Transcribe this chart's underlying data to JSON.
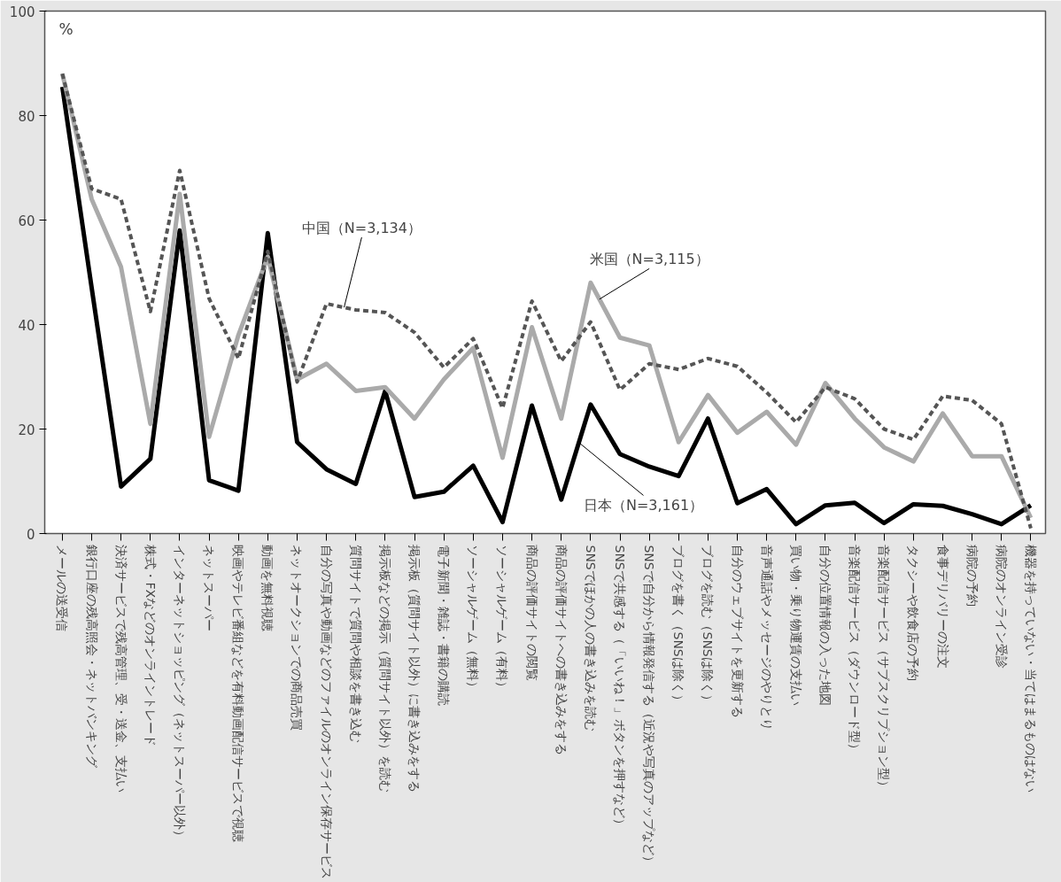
{
  "chart_data": {
    "type": "line",
    "categories": [
      "メールの送受信",
      "銀行口座の残高照会・ネットバンキング",
      "決済サービスで残高管理、受・送金、支払い",
      "株式・FXなどのオンライントレード",
      "インターネットショッピング（ネットスーパー以外）",
      "ネットスーパー",
      "映画やテレビ番組などを有料動画配信サービスで視聴",
      "動画を無料視聴",
      "ネットオークションでの商品売買",
      "自分の写真や動画などのファイルのオンライン保存サービス",
      "質問サイトで質問や相談を書き込む",
      "掲示板などの掲示（質問サイト以外）を読む",
      "掲示板（質問サイト以外）に書き込みをする",
      "電子新聞・雑誌・書籍の購読",
      "ソーシャルゲーム（無料）",
      "ソーシャルゲーム（有料）",
      "商品の評価サイトの閲覧",
      "商品の評価サイトへの書き込みをする",
      "SNSでほかの人の書き込みを読む",
      "SNSで共感する（「いいね！」ボタンを押すなど）",
      "SNSで自分から情報発信する（近況や写真のアップなど）",
      "ブログを書く（SNSは除く）",
      "ブログを読む（SNSは除く）",
      "自分のウェブサイトを更新する",
      "音声通話やメッセージのやりとり",
      "買い物・乗り物運賃の支払い",
      "自分の位置情報の入った地図",
      "音楽配信サービス（ダウンロード型）",
      "音楽配信サービス（サブスクリプション型）",
      "タクシーや飲食店の予約",
      "食事デリバリーの注文",
      "病院の予約",
      "病院のオンライン受診",
      "機器を持っていない・当てはまるものはない"
    ],
    "series": [
      {
        "name": "日本（N=3,161）",
        "color": "#000000",
        "line_style": "solid",
        "values": [
          85.5,
          47,
          9,
          14.3,
          58,
          10.2,
          8.2,
          57.5,
          17.5,
          12.3,
          9.5,
          27.3,
          7,
          8,
          13,
          2.2,
          24.5,
          6.5,
          24.7,
          15.2,
          12.8,
          11,
          22,
          5.8,
          8.5,
          1.8,
          5.4,
          5.9,
          2,
          5.6,
          5.3,
          3.7,
          1.8,
          5.4
        ]
      },
      {
        "name": "米国（N=3,115）",
        "color": "#aaaaaa",
        "line_style": "solid",
        "values": [
          88,
          64,
          51,
          21,
          65,
          18.5,
          38,
          53,
          29.5,
          32.5,
          27.3,
          28,
          22,
          29.5,
          35.5,
          14.5,
          39.5,
          22,
          48,
          37.5,
          36,
          17.5,
          26.5,
          19.3,
          23.3,
          17,
          28.8,
          22,
          16.5,
          13.8,
          23,
          14.8,
          14.8,
          3
        ]
      },
      {
        "name": "中国（N=3,134）",
        "color": "#555555",
        "line_style": "dashed",
        "values": [
          88,
          66,
          64,
          42.5,
          69.5,
          45,
          33.5,
          54,
          29,
          44,
          42.8,
          42.3,
          38.5,
          31.8,
          37.3,
          24,
          44.5,
          33,
          40.5,
          27.5,
          32.5,
          31.4,
          33.5,
          32,
          27,
          21.3,
          28,
          25.8,
          20,
          18,
          26.3,
          25.5,
          21,
          1
        ]
      }
    ],
    "ylabel": "%",
    "ylim": [
      0,
      100
    ],
    "yticks": [
      0,
      20,
      40,
      60,
      80,
      100
    ],
    "grid": false,
    "legend": false,
    "marker": "none"
  }
}
